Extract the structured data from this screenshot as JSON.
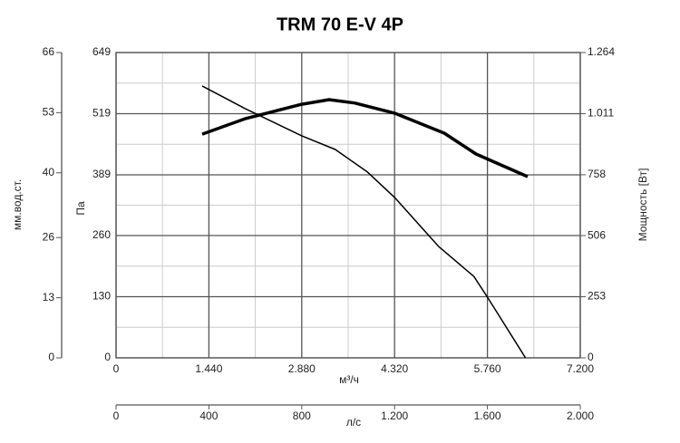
{
  "chart_data": {
    "type": "line",
    "title": "TRM 70 E-V 4P",
    "x_label": "м³/ч",
    "y_label": "Па",
    "y2_label": "Мощность [Вт]",
    "y3_label": "мм.вод.ст.",
    "x2_label": "л/с",
    "xlim": [
      0,
      7200
    ],
    "xticks": [
      0,
      {
        "value": 1440,
        "label": "1.440"
      },
      {
        "value": 2880,
        "label": "2.880"
      },
      {
        "value": 4320,
        "label": "4.320"
      },
      {
        "value": 5760,
        "label": "5.760"
      },
      {
        "value": 7200,
        "label": "7.200"
      }
    ],
    "x2lim": [
      0,
      2000
    ],
    "x2ticks": [
      0,
      400,
      800,
      {
        "value": 1200,
        "label": "1.200"
      },
      {
        "value": 1600,
        "label": "1.600"
      },
      {
        "value": 2000,
        "label": "2.000"
      }
    ],
    "ylim": [
      0,
      649
    ],
    "yticks": [
      0,
      130,
      260,
      389,
      519,
      649
    ],
    "y2lim": [
      0,
      1264
    ],
    "y2ticks": [
      0,
      253,
      506,
      758,
      {
        "value": 1011,
        "label": "1.011"
      },
      {
        "value": 1264,
        "label": "1.264"
      }
    ],
    "y3lim": [
      0,
      66
    ],
    "y3ticks": [
      0,
      13,
      26,
      40,
      53,
      66
    ],
    "grid": true,
    "series": [
      {
        "color": "#000000",
        "line_width": 1.5,
        "x": [
          1336,
          2000,
          2880,
          3400,
          3900,
          4320,
          5000,
          5550,
          5760,
          6350
        ],
        "values": [
          578,
          530,
          472,
          443,
          395,
          341,
          237,
          173,
          129,
          0
        ]
      },
      {
        "color": "#000000",
        "line_width": 3.5,
        "axis": "y2",
        "x": [
          1336,
          2000,
          2880,
          3305,
          3700,
          4320,
          5090,
          5583,
          6385
        ],
        "values": [
          926,
          990,
          1050,
          1069,
          1055,
          1013,
          930,
          844,
          750
        ]
      }
    ]
  }
}
